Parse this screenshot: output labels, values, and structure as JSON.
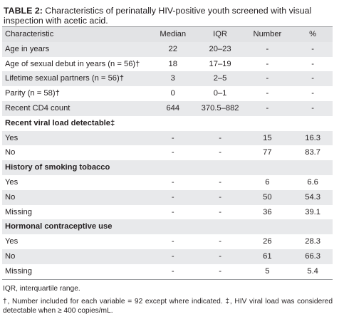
{
  "caption": {
    "label": "TABLE 2:",
    "text": "Characteristics of perinatally HIV-positive youth screened with visual inspection with acetic acid."
  },
  "table": {
    "headers": [
      "Characteristic",
      "Median",
      "IQR",
      "Number",
      "%"
    ],
    "rows": [
      {
        "type": "data",
        "shade": true,
        "cells": [
          "Age in years",
          "22",
          "20–23",
          "-",
          "-"
        ]
      },
      {
        "type": "data",
        "shade": false,
        "cells": [
          "Age of sexual debut in years (n = 56)†",
          "18",
          "17–19",
          "-",
          "-"
        ]
      },
      {
        "type": "data",
        "shade": true,
        "cells": [
          "Lifetime sexual partners (n = 56)†",
          "3",
          "2–5",
          "-",
          "-"
        ]
      },
      {
        "type": "data",
        "shade": false,
        "cells": [
          "Parity (n = 58)†",
          "0",
          "0–1",
          "-",
          "-"
        ]
      },
      {
        "type": "data",
        "shade": true,
        "cells": [
          "Recent CD4 count",
          "644",
          "370.5–882",
          "-",
          "-"
        ]
      },
      {
        "type": "section",
        "shade": false,
        "cells": [
          "Recent viral load detectable‡"
        ]
      },
      {
        "type": "data",
        "shade": true,
        "cells": [
          "Yes",
          "-",
          "-",
          "15",
          "16.3"
        ]
      },
      {
        "type": "data",
        "shade": false,
        "cells": [
          "No",
          "-",
          "-",
          "77",
          "83.7"
        ]
      },
      {
        "type": "section",
        "shade": true,
        "cells": [
          "History of smoking tobacco"
        ]
      },
      {
        "type": "data",
        "shade": false,
        "cells": [
          "Yes",
          "-",
          "-",
          "6",
          "6.6"
        ]
      },
      {
        "type": "data",
        "shade": true,
        "cells": [
          "No",
          "-",
          "-",
          "50",
          "54.3"
        ]
      },
      {
        "type": "data",
        "shade": false,
        "cells": [
          "Missing",
          "-",
          "-",
          "36",
          "39.1"
        ]
      },
      {
        "type": "section",
        "shade": true,
        "cells": [
          "Hormonal contraceptive use"
        ]
      },
      {
        "type": "data",
        "shade": false,
        "cells": [
          "Yes",
          "-",
          "-",
          "26",
          "28.3"
        ]
      },
      {
        "type": "data",
        "shade": true,
        "cells": [
          "No",
          "-",
          "-",
          "61",
          "66.3"
        ]
      },
      {
        "type": "data",
        "shade": false,
        "cells": [
          "Missing",
          "-",
          "-",
          "5",
          "5.4"
        ]
      }
    ]
  },
  "footnotes": [
    "IQR, interquartile range.",
    "†, Number included for each variable = 92 except where indicated. ‡, HIV viral load was considered detectable when ≥ 400 copies/mL."
  ]
}
